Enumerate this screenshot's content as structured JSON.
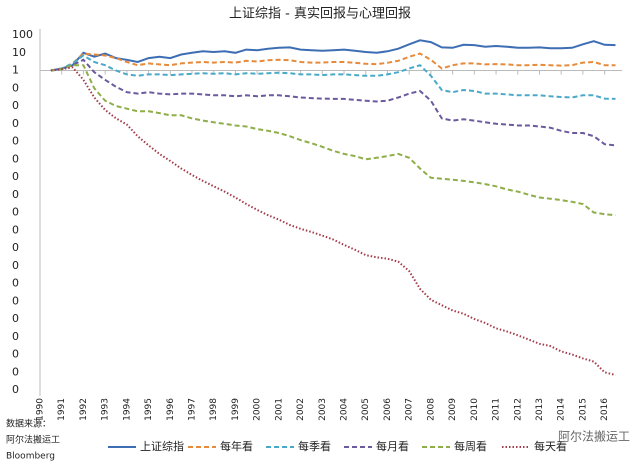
{
  "chart_data": {
    "type": "line",
    "title": "上证综指 - 真实回报与心理回报",
    "source_label": "数据来源：",
    "source_lines": [
      "阿尔法搬运工",
      "Bloomberg"
    ],
    "watermark": "阿尔法搬运工",
    "x": [
      1990.5,
      1991,
      1991.5,
      1992,
      1992.5,
      1993,
      1993.5,
      1994,
      1994.5,
      1995,
      1995.5,
      1996,
      1996.5,
      1997,
      1997.5,
      1998,
      1998.5,
      1999,
      1999.5,
      2000,
      2000.5,
      2001,
      2001.5,
      2002,
      2002.5,
      2003,
      2003.5,
      2004,
      2004.5,
      2005,
      2005.5,
      2006,
      2006.5,
      2007,
      2007.5,
      2008,
      2008.5,
      2009,
      2009.5,
      2010,
      2010.5,
      2011,
      2011.5,
      2012,
      2012.5,
      2013,
      2013.5,
      2014,
      2014.5,
      2015,
      2015.5,
      2016,
      2016.5
    ],
    "xlim": [
      1990,
      2016.8
    ],
    "xticks": [
      1990,
      1991,
      1992,
      1993,
      1994,
      1995,
      1996,
      1997,
      1998,
      1999,
      2000,
      2001,
      2002,
      2003,
      2004,
      2005,
      2006,
      2007,
      2008,
      2009,
      2010,
      2011,
      2012,
      2013,
      2014,
      2015,
      2016
    ],
    "ylim": [
      1e-18,
      100
    ],
    "log_scale": true,
    "x_axis_crosses": 1,
    "yticks": [
      100,
      10,
      1,
      {
        "value": 0.1,
        "label": "0"
      },
      {
        "value": 0.01,
        "label": "0"
      },
      {
        "value": 0.001,
        "label": "0"
      },
      {
        "value": 0.0001,
        "label": "0"
      },
      {
        "value": 1e-05,
        "label": "0"
      },
      {
        "value": 1e-06,
        "label": "0"
      },
      {
        "value": 1e-07,
        "label": "0"
      },
      {
        "value": 1e-08,
        "label": "0"
      },
      {
        "value": 1e-09,
        "label": "0"
      },
      {
        "value": 1e-10,
        "label": "0"
      },
      {
        "value": 1e-11,
        "label": "0"
      },
      {
        "value": 1e-12,
        "label": "0"
      },
      {
        "value": 1e-13,
        "label": "0"
      },
      {
        "value": 1e-14,
        "label": "0"
      },
      {
        "value": 1e-15,
        "label": "0"
      },
      {
        "value": 1e-16,
        "label": "0"
      },
      {
        "value": 1e-17,
        "label": "0"
      },
      {
        "value": 1e-18,
        "label": "0"
      }
    ],
    "legend": "bottom",
    "series": [
      {
        "name": "上证综指",
        "color": "#3d6eb4",
        "style": "solid",
        "values": [
          1,
          1.3,
          2,
          10,
          6,
          9,
          5,
          4,
          3,
          5,
          6,
          5,
          8,
          10,
          12,
          11,
          12,
          10,
          15,
          14,
          17,
          19,
          20,
          15,
          14,
          13,
          14,
          15,
          13,
          11,
          10,
          12,
          17,
          30,
          50,
          40,
          20,
          19,
          28,
          27,
          22,
          24,
          22,
          19,
          19,
          20,
          18,
          18,
          19,
          30,
          45,
          28,
          27
        ]
      },
      {
        "name": "每年看",
        "color": "#e68a3c",
        "style": "dashed",
        "values": [
          1,
          1.3,
          2.5,
          9,
          8,
          7,
          5,
          3,
          2,
          2.5,
          2.2,
          2,
          2.5,
          2.8,
          3,
          2.8,
          3,
          2.8,
          3.5,
          3.2,
          3.8,
          4,
          3.8,
          3,
          2.8,
          2.8,
          3,
          3,
          2.7,
          2.4,
          2.3,
          2.7,
          3.5,
          6,
          9,
          4,
          1.3,
          2,
          2.5,
          2.5,
          2.2,
          2.3,
          2.2,
          2,
          2,
          2.1,
          2,
          1.9,
          2,
          2.8,
          3,
          2,
          2
        ]
      },
      {
        "name": "每季看",
        "color": "#4aa9c9",
        "style": "dashed",
        "values": [
          1,
          1.3,
          2.5,
          7,
          3,
          2,
          1,
          0.6,
          0.5,
          0.6,
          0.6,
          0.55,
          0.6,
          0.65,
          0.7,
          0.65,
          0.7,
          0.6,
          0.7,
          0.65,
          0.7,
          0.75,
          0.7,
          0.6,
          0.6,
          0.55,
          0.6,
          0.6,
          0.55,
          0.5,
          0.5,
          0.6,
          0.8,
          1.3,
          2,
          0.5,
          0.08,
          0.06,
          0.08,
          0.07,
          0.05,
          0.05,
          0.045,
          0.04,
          0.04,
          0.04,
          0.035,
          0.032,
          0.03,
          0.04,
          0.04,
          0.026,
          0.025
        ]
      },
      {
        "name": "每月看",
        "color": "#6b5a9e",
        "style": "dashed",
        "values": [
          1,
          1.2,
          2,
          4,
          0.8,
          0.3,
          0.12,
          0.06,
          0.05,
          0.06,
          0.05,
          0.045,
          0.05,
          0.05,
          0.045,
          0.04,
          0.04,
          0.035,
          0.04,
          0.035,
          0.04,
          0.04,
          0.035,
          0.03,
          0.028,
          0.026,
          0.025,
          0.025,
          0.022,
          0.02,
          0.018,
          0.02,
          0.03,
          0.05,
          0.07,
          0.02,
          0.002,
          0.0015,
          0.0018,
          0.0015,
          0.0012,
          0.001,
          0.0009,
          0.0008,
          0.0008,
          0.0007,
          0.0006,
          0.0004,
          0.0003,
          0.0003,
          0.0002,
          7e-05,
          6e-05
        ]
      },
      {
        "name": "每周看",
        "color": "#8fae4a",
        "style": "dashed",
        "values": [
          1,
          1.2,
          2,
          2,
          0.1,
          0.02,
          0.01,
          0.007,
          0.005,
          0.005,
          0.004,
          0.003,
          0.003,
          0.002,
          0.0015,
          0.0012,
          0.001,
          0.0008,
          0.0007,
          0.0005,
          0.0004,
          0.0003,
          0.0002,
          0.00012,
          8e-05,
          5e-05,
          3e-05,
          2e-05,
          1.5e-05,
          1e-05,
          1.2e-05,
          1.5e-05,
          2e-05,
          1.2e-05,
          3e-06,
          9e-07,
          8e-07,
          7e-07,
          6e-07,
          5e-07,
          4e-07,
          3e-07,
          2e-07,
          1.5e-07,
          1e-07,
          7e-08,
          6e-08,
          5e-08,
          4e-08,
          3e-08,
          1e-08,
          8e-09,
          7e-09
        ]
      },
      {
        "name": "每天看",
        "color": "#a33b4a",
        "style": "dotted",
        "values": [
          1,
          1.2,
          1.5,
          0.3,
          0.03,
          0.006,
          0.002,
          0.0009,
          0.0002,
          6e-05,
          2e-05,
          8e-06,
          3e-06,
          1.3e-06,
          6e-07,
          3e-07,
          1.5e-07,
          7e-08,
          3e-08,
          1.4e-08,
          7e-09,
          4e-09,
          2e-09,
          1.2e-09,
          8e-10,
          5e-10,
          3e-10,
          1.5e-10,
          8e-11,
          4e-11,
          3e-11,
          2.5e-11,
          1.7e-11,
          5e-12,
          5e-13,
          1.2e-13,
          6e-14,
          3e-14,
          2e-14,
          1e-14,
          6e-15,
          3e-15,
          2e-15,
          1.2e-15,
          7e-16,
          4e-16,
          3e-16,
          1.5e-16,
          1e-16,
          6e-17,
          4e-17,
          1e-17,
          7e-18
        ]
      }
    ]
  }
}
